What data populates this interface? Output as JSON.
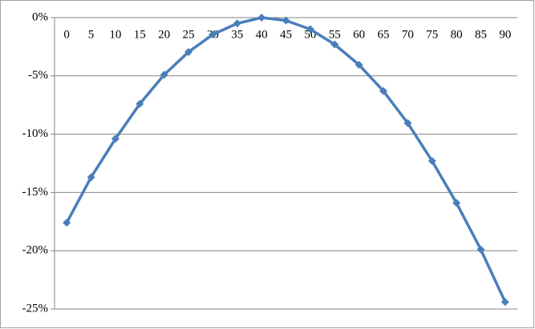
{
  "chart_data": {
    "type": "line",
    "categories": [
      "0",
      "5",
      "10",
      "15",
      "20",
      "25",
      "30",
      "35",
      "40",
      "45",
      "50",
      "55",
      "60",
      "65",
      "70",
      "75",
      "80",
      "85",
      "90"
    ],
    "series": [
      {
        "color": "#4a7ebb",
        "values": [
          -17.6,
          -13.7,
          -10.4,
          -7.4,
          -4.9,
          -2.95,
          -1.45,
          -0.5,
          0,
          -0.25,
          -1.0,
          -2.3,
          -4.05,
          -6.3,
          -9.05,
          -12.3,
          -15.9,
          -19.9,
          -24.4
        ]
      }
    ],
    "ylim": [
      -25,
      0
    ],
    "yticks": [
      {
        "value": 0,
        "label": "0%"
      },
      {
        "value": -5,
        "label": "-5%"
      },
      {
        "value": -10,
        "label": "-10%"
      },
      {
        "value": -15,
        "label": "-15%"
      },
      {
        "value": -20,
        "label": "-20%"
      },
      {
        "value": -25,
        "label": "-25%"
      }
    ],
    "grid": true
  }
}
